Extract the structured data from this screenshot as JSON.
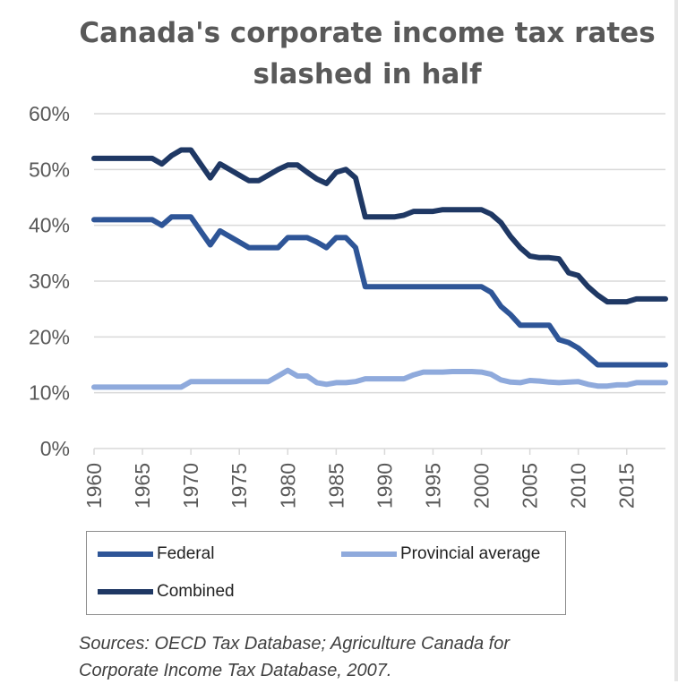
{
  "title_line1": "Canada's corporate income tax rates",
  "title_line2": "slashed in half",
  "source_line1": "Sources: OECD Tax Database; Agriculture Canada for",
  "source_line2": "Corporate Income Tax Database, 2007.",
  "colors": {
    "federal": "#2e5597",
    "provincial": "#8faadc",
    "combined": "#1f3864",
    "grid": "#d9d9d9",
    "tick_text": "#595959"
  },
  "chart_data": {
    "type": "line",
    "title": "Canada's corporate income tax rates slashed in half",
    "ylim": [
      0,
      60
    ],
    "y_ticks": [
      "0%",
      "10%",
      "20%",
      "30%",
      "40%",
      "50%",
      "60%"
    ],
    "x_ticks": [
      "1960",
      "1965",
      "1970",
      "1975",
      "1980",
      "1985",
      "1990",
      "1995",
      "2000",
      "2005",
      "2010",
      "2015"
    ],
    "x": [
      1960,
      1961,
      1962,
      1963,
      1964,
      1965,
      1966,
      1967,
      1968,
      1969,
      1970,
      1971,
      1972,
      1973,
      1974,
      1975,
      1976,
      1977,
      1978,
      1979,
      1980,
      1981,
      1982,
      1983,
      1984,
      1985,
      1986,
      1987,
      1988,
      1989,
      1990,
      1991,
      1992,
      1993,
      1994,
      1995,
      1996,
      1997,
      1998,
      1999,
      2000,
      2001,
      2002,
      2003,
      2004,
      2005,
      2006,
      2007,
      2008,
      2009,
      2010,
      2011,
      2012,
      2013,
      2014,
      2015,
      2016,
      2017,
      2018,
      2019
    ],
    "grid": true,
    "legend_position": "bottom",
    "series": [
      {
        "name": "Federal",
        "color_key": "federal",
        "values": [
          41,
          41,
          41,
          41,
          41,
          41,
          41,
          40,
          41.5,
          41.5,
          41.5,
          39,
          36.5,
          39,
          38,
          37,
          36,
          36,
          36,
          36,
          37.8,
          37.8,
          37.8,
          37,
          36,
          37.8,
          37.8,
          36,
          29,
          29,
          29,
          29,
          29,
          29,
          29,
          29,
          29,
          29,
          29,
          29,
          29,
          28,
          25.5,
          24,
          22.1,
          22.1,
          22.1,
          22.1,
          19.5,
          19,
          18,
          16.5,
          15,
          15,
          15,
          15,
          15,
          15,
          15,
          15
        ]
      },
      {
        "name": "Provincial average",
        "color_key": "provincial",
        "values": [
          11,
          11,
          11,
          11,
          11,
          11,
          11,
          11,
          11,
          11,
          12,
          12,
          12,
          12,
          12,
          12,
          12,
          12,
          12,
          13,
          14,
          13,
          13,
          11.8,
          11.5,
          11.8,
          11.8,
          12,
          12.5,
          12.5,
          12.5,
          12.5,
          12.5,
          13.2,
          13.7,
          13.7,
          13.7,
          13.8,
          13.8,
          13.8,
          13.7,
          13.3,
          12.3,
          11.9,
          11.8,
          12.2,
          12.1,
          11.9,
          11.8,
          11.9,
          12,
          11.5,
          11.2,
          11.2,
          11.4,
          11.4,
          11.8,
          11.8,
          11.8,
          11.8
        ]
      },
      {
        "name": "Combined",
        "color_key": "combined",
        "values": [
          52,
          52,
          52,
          52,
          52,
          52,
          52,
          51,
          52.5,
          53.5,
          53.5,
          51,
          48.5,
          51,
          50,
          49,
          48,
          48,
          49,
          50,
          50.8,
          50.8,
          49.5,
          48.3,
          47.5,
          49.5,
          50,
          48.5,
          41.5,
          41.5,
          41.5,
          41.5,
          41.8,
          42.5,
          42.5,
          42.5,
          42.8,
          42.8,
          42.8,
          42.8,
          42.8,
          42,
          40.5,
          38,
          36,
          34.5,
          34.2,
          34.2,
          34,
          31.5,
          31,
          29,
          27.5,
          26.3,
          26.3,
          26.3,
          26.8,
          26.8,
          26.8,
          26.8
        ]
      }
    ]
  }
}
